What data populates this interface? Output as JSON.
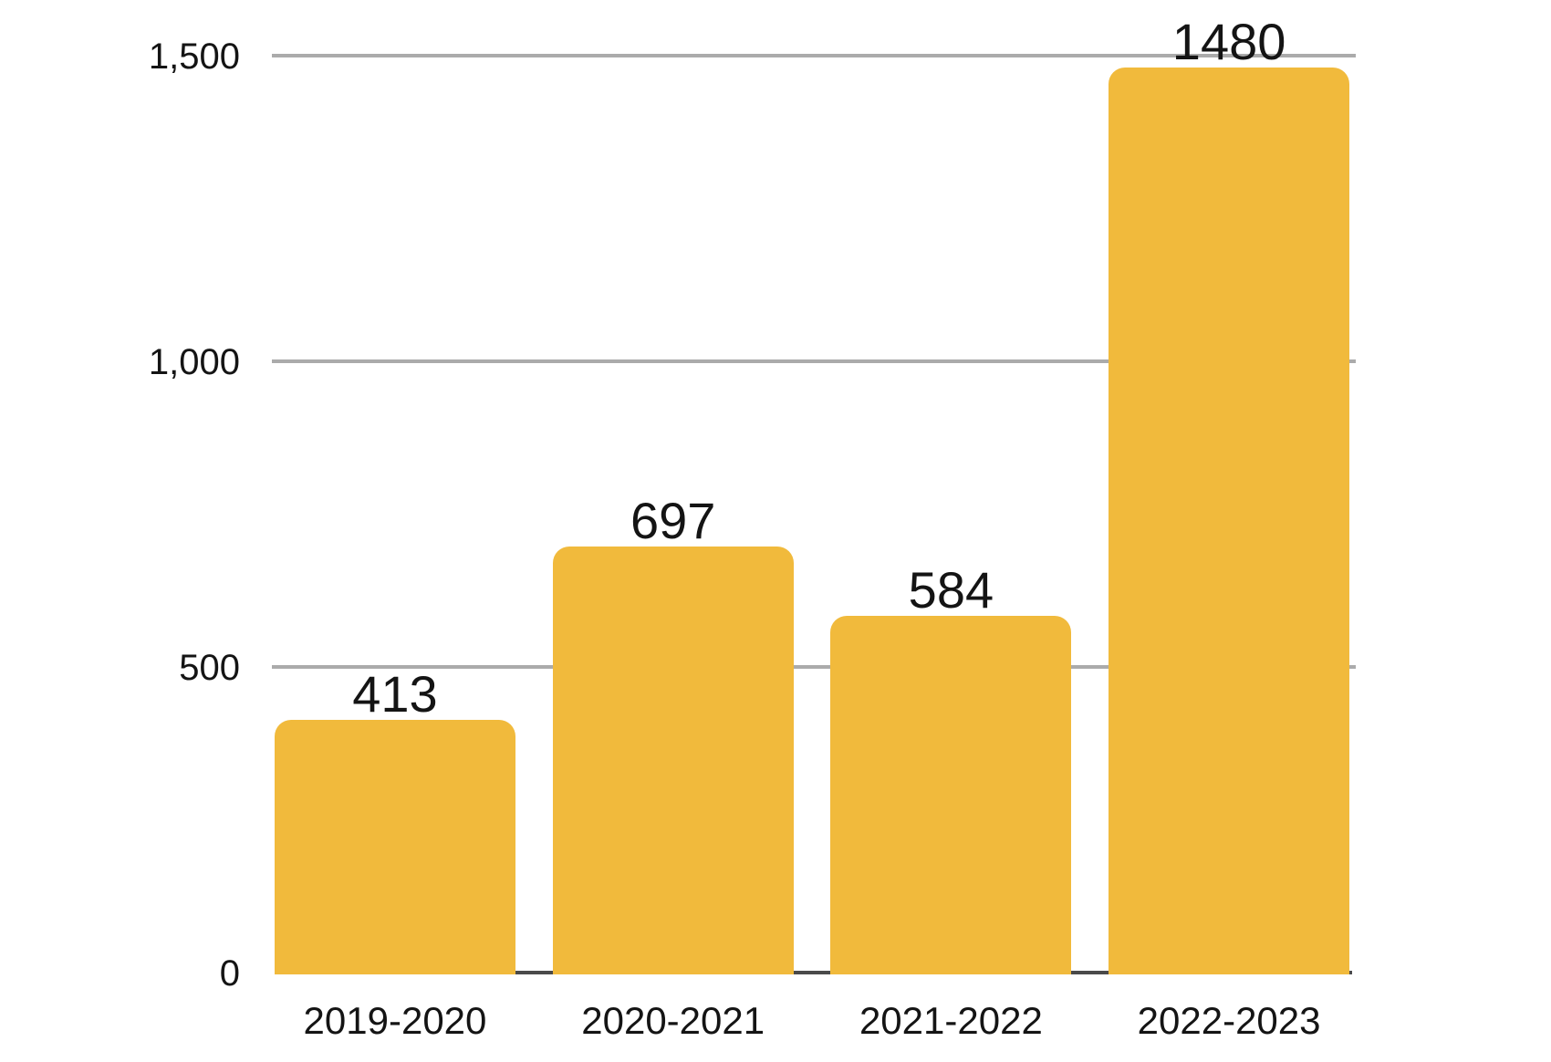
{
  "chart_data": {
    "type": "bar",
    "title": "",
    "xlabel": "",
    "ylabel": "",
    "categories": [
      "2019-2020",
      "2020-2021",
      "2021-2022",
      "2022-2023"
    ],
    "values": [
      413,
      697,
      584,
      1480
    ],
    "bar_labels": [
      "413",
      "697",
      "584",
      "1480"
    ],
    "ylim": [
      0,
      1500
    ],
    "yticks": [
      {
        "value": 0,
        "label": "0"
      },
      {
        "value": 500,
        "label": "500"
      },
      {
        "value": 1000,
        "label": "1,000"
      },
      {
        "value": 1500,
        "label": "1,500"
      }
    ],
    "grid": "horizontal gridlines at each y tick",
    "legend": "none",
    "colors": {
      "bar": "#F1BA3C",
      "gridline": "#ABABAB",
      "axis_line": "#4A4A4A",
      "text": "#141414",
      "background": "#FFFFFF"
    }
  }
}
